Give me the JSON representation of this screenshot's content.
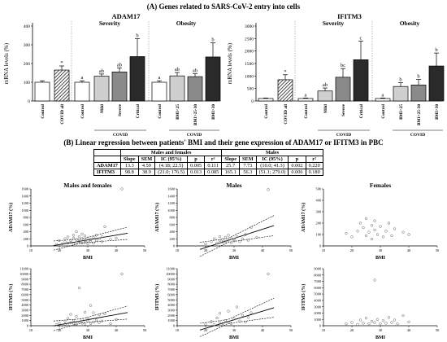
{
  "figure": {
    "section_a_title": "(A) Genes related to SARS-CoV-2 entry into cells",
    "section_b_title": "(B) Linear regression between patients' BMI and their gene expression of ADAM17 or IFITM3 in PBC"
  },
  "chart_data": [
    {
      "type": "bar",
      "id": "adam17-bars",
      "title": "ADAM17",
      "ylabel": "mRNA levels (%)",
      "ylim": [
        0,
        400
      ],
      "yticks": [
        0,
        100,
        200,
        300,
        400
      ],
      "group_labels": [
        "Severity",
        "Obesity"
      ],
      "axis_group_label": "COVID",
      "categories": [
        "Control",
        "COVID all",
        "Control",
        "Mild",
        "Severe",
        "Critical",
        "Control",
        "BMI<25",
        "BMI>25-30",
        "BMI>30"
      ],
      "values": [
        100,
        165,
        100,
        132,
        155,
        237,
        100,
        134,
        130,
        235
      ],
      "errors": [
        8,
        22,
        8,
        12,
        22,
        95,
        8,
        18,
        15,
        75
      ],
      "letters": [
        "",
        "*",
        "a",
        "ab",
        "ab",
        "b",
        "a",
        "ab",
        "ab",
        "b"
      ],
      "fills": [
        "white",
        "hatch",
        "white",
        "#cfcfcf",
        "#8a8a8a",
        "#2a2a2a",
        "white",
        "#cfcfcf",
        "#8a8a8a",
        "#2a2a2a"
      ]
    },
    {
      "type": "bar",
      "id": "ifitm3-bars",
      "title": "IFITM3",
      "ylabel": "mRNA levels (%)",
      "ylim": [
        0,
        3000
      ],
      "yticks": [
        0,
        500,
        1000,
        1500,
        2000,
        2500,
        3000
      ],
      "group_labels": [
        "Severity",
        "Obesity"
      ],
      "axis_group_label": "COVID",
      "categories": [
        "Control",
        "COVID all",
        "Control",
        "Mild",
        "Severe",
        "Critical",
        "Control",
        "BMI<25",
        "BMI>25-30",
        "BMI>30"
      ],
      "values": [
        100,
        850,
        100,
        400,
        950,
        1650,
        100,
        580,
        640,
        1400
      ],
      "errors": [
        20,
        200,
        20,
        120,
        350,
        750,
        20,
        150,
        220,
        520
      ],
      "letters": [
        "",
        "*",
        "a",
        "ab",
        "bc",
        "c",
        "a",
        "b",
        "b",
        "b"
      ],
      "fills": [
        "white",
        "hatch",
        "white",
        "#cfcfcf",
        "#8a8a8a",
        "#2a2a2a",
        "white",
        "#cfcfcf",
        "#8a8a8a",
        "#2a2a2a"
      ]
    },
    {
      "type": "table",
      "id": "regression-table",
      "group_headers": [
        "Males and females",
        "Males"
      ],
      "columns": [
        "Slope",
        "SEM",
        "IC (95%)",
        "p",
        "r²"
      ],
      "rows": [
        {
          "gene": "ADAM17",
          "mf": [
            "13.3",
            "4.59",
            "(4.18; 22.5)",
            "0.005",
            "0.111"
          ],
          "m": [
            "25.7",
            "7.73",
            "(10.0; 41.3)",
            "0.002",
            "0.220"
          ]
        },
        {
          "gene": "IFITM3",
          "mf": [
            "98.8",
            "38.9",
            "(21.0; 176.5)",
            "0.013",
            "0.085"
          ],
          "m": [
            "165.1",
            "56.3",
            "(51.1; 279.0)",
            "0.006",
            "0.180"
          ]
        }
      ]
    },
    {
      "type": "scatter",
      "id": "scatter-adam17-mf",
      "title": "Males and females",
      "xlabel": "BMI",
      "ylabel": "ADAM17 (%)",
      "xlim": [
        10,
        50
      ],
      "xticks": [
        10,
        20,
        30,
        40,
        50
      ],
      "ylim": [
        0,
        1600
      ],
      "yticks": [
        0,
        200,
        400,
        600,
        800,
        1000,
        1200,
        1400,
        1600
      ],
      "regression": {
        "slope": 13.3,
        "intercept": -230,
        "ci": true
      },
      "points": [
        [
          19,
          40
        ],
        [
          20,
          150
        ],
        [
          21,
          60
        ],
        [
          22,
          120
        ],
        [
          22,
          200
        ],
        [
          23,
          80
        ],
        [
          23,
          250
        ],
        [
          24,
          100
        ],
        [
          24,
          160
        ],
        [
          25,
          60
        ],
        [
          25,
          220
        ],
        [
          25,
          300
        ],
        [
          26,
          90
        ],
        [
          26,
          180
        ],
        [
          26,
          400
        ],
        [
          27,
          120
        ],
        [
          27,
          260
        ],
        [
          27,
          140
        ],
        [
          28,
          80
        ],
        [
          28,
          210
        ],
        [
          28,
          330
        ],
        [
          29,
          160
        ],
        [
          29,
          100
        ],
        [
          29,
          280
        ],
        [
          30,
          140
        ],
        [
          30,
          220
        ],
        [
          30,
          60
        ],
        [
          31,
          180
        ],
        [
          31,
          120
        ],
        [
          32,
          240
        ],
        [
          32,
          80
        ],
        [
          33,
          160
        ],
        [
          33,
          300
        ],
        [
          34,
          200
        ],
        [
          35,
          120
        ],
        [
          35,
          260
        ],
        [
          36,
          540
        ],
        [
          38,
          180
        ],
        [
          40,
          220
        ],
        [
          42,
          1600
        ]
      ]
    },
    {
      "type": "scatter",
      "id": "scatter-adam17-m",
      "title": "Males",
      "xlabel": "BMI",
      "ylabel": "ADAM17 (%)",
      "xlim": [
        10,
        50
      ],
      "xticks": [
        10,
        20,
        30,
        40,
        50
      ],
      "ylim": [
        0,
        1600
      ],
      "yticks": [
        0,
        200,
        400,
        600,
        800,
        1000,
        1200,
        1400,
        1600
      ],
      "regression": {
        "slope": 25.7,
        "intercept": -560,
        "ci": true
      },
      "points": [
        [
          20,
          60
        ],
        [
          22,
          120
        ],
        [
          23,
          200
        ],
        [
          24,
          80
        ],
        [
          25,
          150
        ],
        [
          25,
          260
        ],
        [
          26,
          100
        ],
        [
          26,
          180
        ],
        [
          27,
          240
        ],
        [
          27,
          120
        ],
        [
          28,
          300
        ],
        [
          28,
          160
        ],
        [
          29,
          90
        ],
        [
          29,
          220
        ],
        [
          30,
          180
        ],
        [
          30,
          140
        ],
        [
          31,
          260
        ],
        [
          32,
          120
        ],
        [
          33,
          200
        ],
        [
          34,
          320
        ],
        [
          35,
          160
        ],
        [
          36,
          520
        ],
        [
          38,
          240
        ],
        [
          42,
          1580
        ]
      ]
    },
    {
      "type": "scatter",
      "id": "scatter-adam17-f",
      "title": "Females",
      "xlabel": "BMI",
      "ylabel": "ADAM17 (%)",
      "xlim": [
        10,
        50
      ],
      "xticks": [
        10,
        20,
        30,
        40,
        50
      ],
      "ylim": [
        0,
        500
      ],
      "yticks": [
        0,
        100,
        200,
        300,
        400,
        500
      ],
      "points": [
        [
          18,
          110
        ],
        [
          20,
          80
        ],
        [
          22,
          130
        ],
        [
          23,
          200
        ],
        [
          24,
          160
        ],
        [
          25,
          90
        ],
        [
          25,
          240
        ],
        [
          26,
          120
        ],
        [
          27,
          180
        ],
        [
          27,
          60
        ],
        [
          28,
          140
        ],
        [
          28,
          220
        ],
        [
          29,
          100
        ],
        [
          30,
          170
        ],
        [
          31,
          80
        ],
        [
          32,
          130
        ],
        [
          33,
          200
        ],
        [
          34,
          90
        ],
        [
          35,
          150
        ],
        [
          38,
          120
        ],
        [
          40,
          100
        ]
      ]
    },
    {
      "type": "scatter",
      "id": "scatter-ifitm3-mf",
      "title": "",
      "xlabel": "BMI",
      "ylabel": "IFITM3 (%)",
      "xlim": [
        10,
        50
      ],
      "xticks": [
        10,
        20,
        30,
        40,
        50
      ],
      "ylim": [
        0,
        11000
      ],
      "yticks": [
        0,
        1000,
        2000,
        3000,
        4000,
        5000,
        6000,
        7000,
        8000,
        9000,
        10000,
        11000
      ],
      "regression": {
        "slope": 98.8,
        "intercept": -1800,
        "ci": true
      },
      "points": [
        [
          19,
          200
        ],
        [
          20,
          500
        ],
        [
          21,
          100
        ],
        [
          22,
          900
        ],
        [
          22,
          300
        ],
        [
          23,
          1400
        ],
        [
          23,
          200
        ],
        [
          24,
          600
        ],
        [
          24,
          2200
        ],
        [
          25,
          400
        ],
        [
          25,
          1000
        ],
        [
          26,
          300
        ],
        [
          26,
          1800
        ],
        [
          27,
          700
        ],
        [
          27,
          7300
        ],
        [
          28,
          500
        ],
        [
          28,
          1200
        ],
        [
          29,
          2600
        ],
        [
          29,
          300
        ],
        [
          30,
          900
        ],
        [
          30,
          1500
        ],
        [
          31,
          400
        ],
        [
          31,
          3900
        ],
        [
          32,
          700
        ],
        [
          32,
          2500
        ],
        [
          33,
          1100
        ],
        [
          34,
          600
        ],
        [
          34,
          2100
        ],
        [
          35,
          900
        ],
        [
          36,
          2300
        ],
        [
          38,
          400
        ],
        [
          40,
          1200
        ],
        [
          42,
          10000
        ]
      ]
    },
    {
      "type": "scatter",
      "id": "scatter-ifitm3-m",
      "title": "",
      "xlabel": "BMI",
      "ylabel": "IFITM3 (%)",
      "xlim": [
        10,
        50
      ],
      "xticks": [
        10,
        20,
        30,
        40,
        50
      ],
      "ylim": [
        0,
        11000
      ],
      "yticks": [
        0,
        1000,
        2000,
        3000,
        4000,
        5000,
        6000,
        7000,
        8000,
        9000,
        10000,
        11000
      ],
      "regression": {
        "slope": 165.1,
        "intercept": -3800,
        "ci": true
      },
      "points": [
        [
          20,
          300
        ],
        [
          22,
          800
        ],
        [
          23,
          200
        ],
        [
          24,
          1500
        ],
        [
          25,
          600
        ],
        [
          25,
          2400
        ],
        [
          26,
          400
        ],
        [
          27,
          1000
        ],
        [
          28,
          700
        ],
        [
          28,
          2800
        ],
        [
          29,
          400
        ],
        [
          30,
          1300
        ],
        [
          31,
          3600
        ],
        [
          32,
          900
        ],
        [
          33,
          2000
        ],
        [
          34,
          700
        ],
        [
          35,
          1600
        ],
        [
          36,
          2500
        ],
        [
          42,
          10000
        ]
      ]
    },
    {
      "type": "scatter",
      "id": "scatter-ifitm3-f",
      "title": "",
      "xlabel": "BMI",
      "ylabel": "IFITM3 (%)",
      "xlim": [
        10,
        50
      ],
      "xticks": [
        10,
        20,
        30,
        40,
        50
      ],
      "ylim": [
        0,
        9000
      ],
      "yticks": [
        0,
        1000,
        2000,
        3000,
        4000,
        5000,
        6000,
        7000,
        8000,
        9000
      ],
      "points": [
        [
          18,
          300
        ],
        [
          20,
          500
        ],
        [
          22,
          200
        ],
        [
          23,
          900
        ],
        [
          24,
          400
        ],
        [
          25,
          1200
        ],
        [
          26,
          300
        ],
        [
          27,
          700
        ],
        [
          28,
          7200
        ],
        [
          28,
          500
        ],
        [
          29,
          1000
        ],
        [
          30,
          300
        ],
        [
          31,
          800
        ],
        [
          32,
          400
        ],
        [
          33,
          1300
        ],
        [
          34,
          500
        ],
        [
          35,
          900
        ],
        [
          36,
          300
        ],
        [
          38,
          1600
        ],
        [
          40,
          600
        ]
      ]
    }
  ]
}
